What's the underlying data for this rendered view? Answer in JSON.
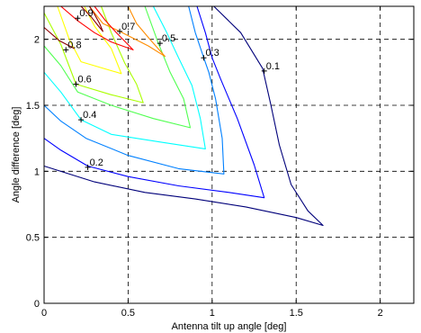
{
  "chart_data": {
    "type": "contour",
    "title": "",
    "xlabel": "Antenna tilt up angle [deg]",
    "ylabel": "Angle difference [deg]",
    "xlim": [
      0,
      2.2
    ],
    "ylim": [
      0,
      2.25
    ],
    "xticks": [
      0,
      0.5,
      1,
      1.5,
      2
    ],
    "xtick_labels": [
      "0",
      "0.5",
      "1",
      "1.5",
      "2"
    ],
    "yticks": [
      0,
      0.5,
      1,
      1.5,
      2
    ],
    "ytick_labels": [
      "0",
      "0.5",
      "1",
      "1.5",
      "2"
    ],
    "grid": true,
    "grid_style": "dashed",
    "levels": [
      {
        "label": "0.1",
        "value": 0.1,
        "color": "#00007a",
        "points": [
          [
            1.01,
            2.25
          ],
          [
            1.17,
            2.05
          ],
          [
            1.3,
            1.78
          ],
          [
            1.35,
            1.5
          ],
          [
            1.4,
            1.2
          ],
          [
            1.47,
            0.9
          ],
          [
            1.57,
            0.7
          ],
          [
            1.66,
            0.59
          ],
          [
            1.5,
            0.65
          ],
          [
            1.2,
            0.73
          ],
          [
            0.9,
            0.79
          ],
          [
            0.6,
            0.84
          ],
          [
            0.3,
            0.92
          ],
          [
            0.0,
            1.04
          ]
        ],
        "label_at": [
          1.31,
          1.76
        ]
      },
      {
        "label": "0.2",
        "value": 0.2,
        "color": "#0000ff",
        "points": [
          [
            0.0,
            1.25
          ],
          [
            0.1,
            1.16
          ],
          [
            0.26,
            1.04
          ],
          [
            0.5,
            0.96
          ],
          [
            0.8,
            0.89
          ],
          [
            1.1,
            0.84
          ],
          [
            1.31,
            0.8
          ],
          [
            1.25,
            1.05
          ],
          [
            1.15,
            1.4
          ],
          [
            1.05,
            1.7
          ],
          [
            1.0,
            1.86
          ],
          [
            0.96,
            2.05
          ],
          [
            0.91,
            2.25
          ]
        ],
        "label_at": [
          0.26,
          1.03
        ]
      },
      {
        "label": "0.3",
        "value": 0.3,
        "color": "#0080ff",
        "points": [
          [
            0.0,
            1.5
          ],
          [
            0.1,
            1.38
          ],
          [
            0.25,
            1.25
          ],
          [
            0.5,
            1.12
          ],
          [
            0.8,
            1.02
          ],
          [
            1.07,
            0.98
          ],
          [
            1.06,
            1.25
          ],
          [
            1.02,
            1.55
          ],
          [
            0.98,
            1.75
          ],
          [
            0.95,
            1.86
          ],
          [
            0.9,
            2.05
          ],
          [
            0.86,
            2.25
          ]
        ],
        "label_at": [
          0.95,
          1.86
        ]
      },
      {
        "label": "0.4",
        "value": 0.4,
        "color": "#00ffff",
        "points": [
          [
            0.0,
            1.75
          ],
          [
            0.1,
            1.6
          ],
          [
            0.22,
            1.39
          ],
          [
            0.4,
            1.28
          ],
          [
            0.7,
            1.22
          ],
          [
            0.96,
            1.17
          ],
          [
            0.93,
            1.4
          ],
          [
            0.88,
            1.65
          ],
          [
            0.8,
            1.86
          ],
          [
            0.73,
            2.05
          ],
          [
            0.65,
            2.25
          ]
        ],
        "label_at": [
          0.22,
          1.39
        ]
      },
      {
        "label": "0.5",
        "value": 0.5,
        "color": "#50ff50",
        "points": [
          [
            0.0,
            1.95
          ],
          [
            0.1,
            1.8
          ],
          [
            0.2,
            1.6
          ],
          [
            0.4,
            1.5
          ],
          [
            0.65,
            1.4
          ],
          [
            0.87,
            1.33
          ],
          [
            0.83,
            1.55
          ],
          [
            0.75,
            1.75
          ],
          [
            0.68,
            1.97
          ],
          [
            0.6,
            2.25
          ]
        ],
        "label_at": [
          0.69,
          1.97
        ]
      },
      {
        "label": "0.6",
        "value": 0.6,
        "color": "#aaff00",
        "points": [
          [
            0.0,
            2.2
          ],
          [
            0.1,
            1.96
          ],
          [
            0.19,
            1.66
          ],
          [
            0.4,
            1.58
          ],
          [
            0.59,
            1.52
          ],
          [
            0.55,
            1.66
          ],
          [
            0.48,
            1.82
          ],
          [
            0.4,
            2.05
          ],
          [
            0.34,
            2.25
          ]
        ],
        "label_at": [
          0.19,
          1.66
        ]
      },
      {
        "label": "0.7",
        "value": 0.7,
        "color": "#ffff00",
        "points": [
          [
            0.08,
            2.25
          ],
          [
            0.15,
            2.0
          ],
          [
            0.22,
            1.83
          ],
          [
            0.46,
            1.74
          ],
          [
            0.4,
            1.93
          ],
          [
            0.3,
            2.1
          ],
          [
            0.24,
            2.25
          ]
        ],
        "label_at": [
          0.45,
          2.06
        ]
      },
      {
        "label": "0.8",
        "value": 0.8,
        "color": "#ff8c00",
        "points": [
          [
            0.27,
            2.25
          ],
          [
            0.35,
            2.12
          ],
          [
            0.45,
            2.06
          ],
          [
            0.62,
            1.95
          ],
          [
            0.72,
            1.87
          ],
          [
            0.63,
            2.0
          ],
          [
            0.55,
            2.12
          ],
          [
            0.5,
            2.25
          ]
        ],
        "label_at": [
          0.13,
          1.92
        ]
      },
      {
        "label": "0.9",
        "value": 0.9,
        "color": "#ff0000",
        "points": [
          [
            0.1,
            2.25
          ],
          [
            0.2,
            2.14
          ],
          [
            0.3,
            2.05
          ],
          [
            0.4,
            1.98
          ],
          [
            0.53,
            1.92
          ],
          [
            0.43,
            2.05
          ],
          [
            0.36,
            2.15
          ],
          [
            0.3,
            2.25
          ]
        ],
        "label_at": [
          0.2,
          2.16
        ]
      },
      {
        "label": "",
        "value": 0.95,
        "color": "#8b0000",
        "points": [
          [
            0.22,
            2.25
          ],
          [
            0.28,
            2.17
          ],
          [
            0.33,
            2.09
          ],
          [
            0.35,
            2.06
          ],
          [
            0.33,
            2.12
          ],
          [
            0.3,
            2.19
          ],
          [
            0.27,
            2.25
          ]
        ]
      },
      {
        "label": "",
        "value": 0.95,
        "color": "#8b0000",
        "points": [
          [
            0.0,
            2.09
          ],
          [
            0.09,
            1.99
          ],
          [
            0.18,
            1.93
          ]
        ]
      }
    ]
  }
}
